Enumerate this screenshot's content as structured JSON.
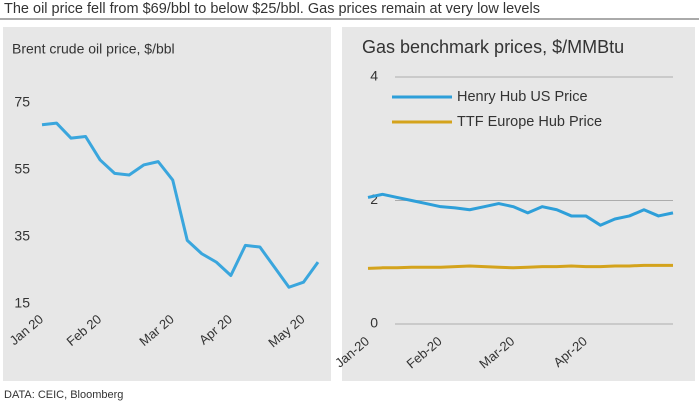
{
  "header": {
    "title": "The oil price fell from $69/bbl to below $25/bbl. Gas prices remain at very low levels"
  },
  "source": "DATA: CEIC, Bloomberg",
  "chart_data": [
    {
      "type": "line",
      "title": "Brent crude oil price, $/bbl",
      "categories": [
        "Jan 20",
        null,
        null,
        null,
        "Feb 20",
        null,
        null,
        null,
        null,
        "Mar 20",
        null,
        null,
        null,
        "Apr 20",
        null,
        null,
        null,
        null,
        "May 20",
        null
      ],
      "series": [
        {
          "name": "Brent",
          "color": "#3aa6dd",
          "values": [
            68.5,
            69,
            64.5,
            65,
            58,
            54,
            53.5,
            56.5,
            57.5,
            52,
            34,
            30,
            27.5,
            23.5,
            32.5,
            32,
            26,
            20,
            21.5,
            27.5
          ]
        }
      ],
      "ylim": [
        15,
        75
      ],
      "yticks": [
        15,
        35,
        55,
        75
      ],
      "grid": false
    },
    {
      "type": "line",
      "title": "Gas benchmark prices, $/MMBtu",
      "categories": [
        "Jan-20",
        null,
        null,
        null,
        null,
        "Feb-20",
        null,
        null,
        null,
        null,
        "Mar-20",
        null,
        null,
        null,
        null,
        "Apr-20",
        null,
        null,
        null,
        null,
        null,
        null
      ],
      "series": [
        {
          "name": "Henry Hub US Price",
          "color": "#2e9fd9",
          "values": [
            2.05,
            2.1,
            2.05,
            2.0,
            1.95,
            1.9,
            1.88,
            1.85,
            1.9,
            1.95,
            1.9,
            1.8,
            1.9,
            1.85,
            1.75,
            1.75,
            1.6,
            1.7,
            1.75,
            1.85,
            1.75,
            1.8
          ]
        },
        {
          "name": "TTF Europe Hub Price",
          "color": "#d4a31c",
          "values": [
            0.9,
            0.91,
            0.91,
            0.92,
            0.92,
            0.92,
            0.93,
            0.94,
            0.93,
            0.92,
            0.91,
            0.92,
            0.93,
            0.93,
            0.94,
            0.93,
            0.93,
            0.94,
            0.94,
            0.95,
            0.95,
            0.95
          ]
        }
      ],
      "ylim": [
        0,
        4
      ],
      "yticks": [
        0,
        2,
        4
      ],
      "grid": true,
      "legend": "top-left"
    }
  ]
}
